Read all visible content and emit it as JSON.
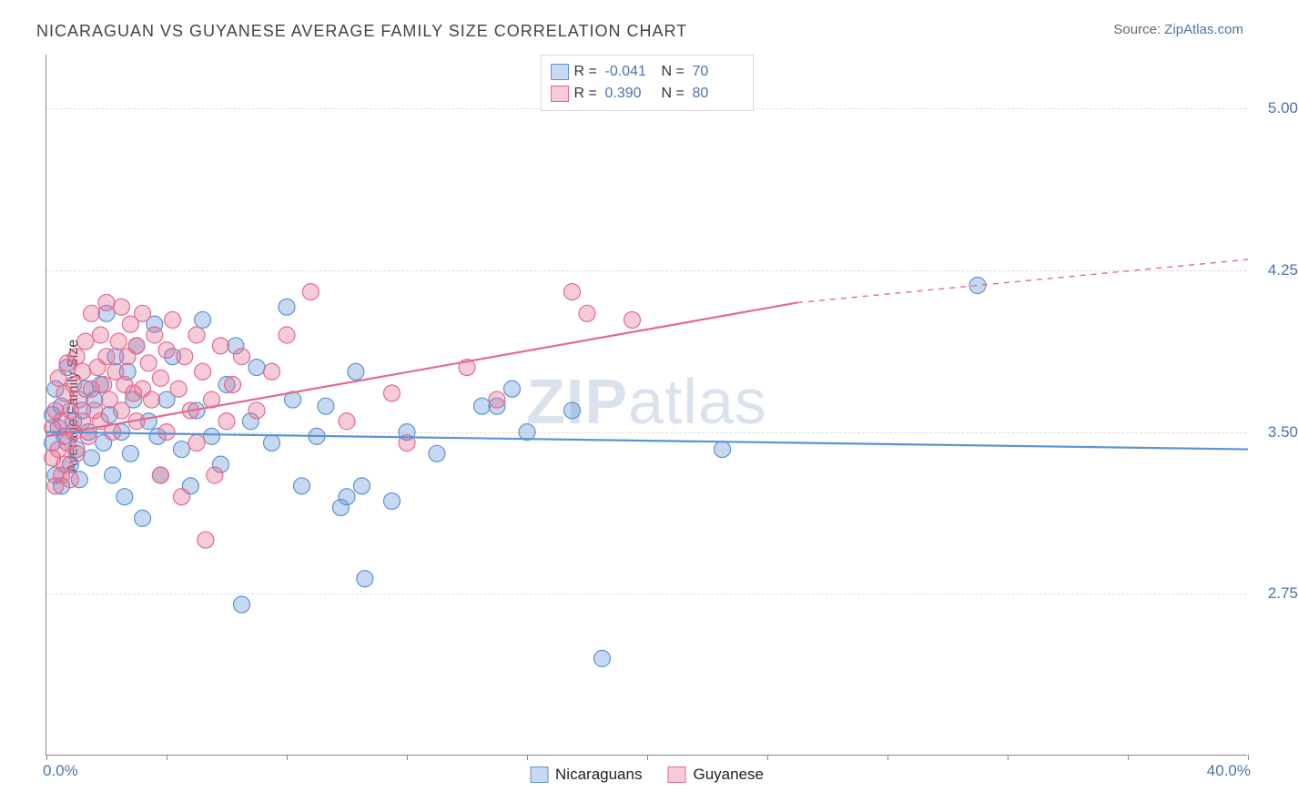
{
  "title": "NICARAGUAN VS GUYANESE AVERAGE FAMILY SIZE CORRELATION CHART",
  "source_label": "Source:",
  "source_name": "ZipAtlas.com",
  "ylabel": "Average Family Size",
  "watermark_bold": "ZIP",
  "watermark_rest": "atlas",
  "chart": {
    "type": "scatter-correlation",
    "xlim": [
      0,
      40
    ],
    "ylim": [
      2.0,
      5.25
    ],
    "x_unit": "%",
    "y_ticks": [
      2.75,
      3.5,
      4.25,
      5.0
    ],
    "y_tick_labels": [
      "2.75",
      "3.50",
      "4.25",
      "5.00"
    ],
    "x_tick_positions": [
      0,
      4,
      8,
      12,
      16,
      20,
      24,
      28,
      32,
      36,
      40
    ],
    "x_min_label": "0.0%",
    "x_max_label": "40.0%",
    "background_color": "#ffffff",
    "grid_color": "#dddddd",
    "axis_color": "#888888",
    "marker_radius": 9,
    "marker_fill_opacity": 0.35,
    "marker_stroke_width": 1.2,
    "line_width": 2.2,
    "series": [
      {
        "key": "nicaraguans",
        "label": "Nicaraguans",
        "color": "#5b93d6",
        "fill": "rgba(91,147,214,0.35)",
        "R": "-0.041",
        "N": "70",
        "trend_solid": {
          "x1": 0,
          "y1": 3.5,
          "x2": 40,
          "y2": 3.42
        },
        "trend_dashed": null,
        "points": [
          [
            0.2,
            3.45
          ],
          [
            0.2,
            3.58
          ],
          [
            0.3,
            3.3
          ],
          [
            0.3,
            3.7
          ],
          [
            0.4,
            3.52
          ],
          [
            0.5,
            3.25
          ],
          [
            0.5,
            3.62
          ],
          [
            0.6,
            3.48
          ],
          [
            0.7,
            3.8
          ],
          [
            0.8,
            3.35
          ],
          [
            0.9,
            3.55
          ],
          [
            1.0,
            3.42
          ],
          [
            1.1,
            3.28
          ],
          [
            1.2,
            3.6
          ],
          [
            1.3,
            3.7
          ],
          [
            1.4,
            3.5
          ],
          [
            1.5,
            3.38
          ],
          [
            1.6,
            3.65
          ],
          [
            1.8,
            3.72
          ],
          [
            1.9,
            3.45
          ],
          [
            2.0,
            4.05
          ],
          [
            2.1,
            3.58
          ],
          [
            2.2,
            3.3
          ],
          [
            2.3,
            3.85
          ],
          [
            2.5,
            3.5
          ],
          [
            2.6,
            3.2
          ],
          [
            2.7,
            3.78
          ],
          [
            2.8,
            3.4
          ],
          [
            2.9,
            3.65
          ],
          [
            3.0,
            3.9
          ],
          [
            3.2,
            3.1
          ],
          [
            3.4,
            3.55
          ],
          [
            3.6,
            4.0
          ],
          [
            3.7,
            3.48
          ],
          [
            3.8,
            3.3
          ],
          [
            4.0,
            3.65
          ],
          [
            4.2,
            3.85
          ],
          [
            4.5,
            3.42
          ],
          [
            4.8,
            3.25
          ],
          [
            5.0,
            3.6
          ],
          [
            5.2,
            4.02
          ],
          [
            5.5,
            3.48
          ],
          [
            5.8,
            3.35
          ],
          [
            6.0,
            3.72
          ],
          [
            6.3,
            3.9
          ],
          [
            6.5,
            2.7
          ],
          [
            6.8,
            3.55
          ],
          [
            7.0,
            3.8
          ],
          [
            7.5,
            3.45
          ],
          [
            8.0,
            4.08
          ],
          [
            8.2,
            3.65
          ],
          [
            8.5,
            3.25
          ],
          [
            9.0,
            3.48
          ],
          [
            9.3,
            3.62
          ],
          [
            9.8,
            3.15
          ],
          [
            10.0,
            3.2
          ],
          [
            10.3,
            3.78
          ],
          [
            10.5,
            3.25
          ],
          [
            10.6,
            2.82
          ],
          [
            11.5,
            3.18
          ],
          [
            12.0,
            3.5
          ],
          [
            13.0,
            3.4
          ],
          [
            14.5,
            3.62
          ],
          [
            15.0,
            3.62
          ],
          [
            15.5,
            3.7
          ],
          [
            16.0,
            3.5
          ],
          [
            17.5,
            3.6
          ],
          [
            18.5,
            2.45
          ],
          [
            22.5,
            3.42
          ],
          [
            31.0,
            4.18
          ]
        ]
      },
      {
        "key": "guyanese",
        "label": "Guyanese",
        "color": "#e46a8e",
        "fill": "rgba(228,106,142,0.35)",
        "R": "0.390",
        "N": "80",
        "trend_solid": {
          "x1": 0,
          "y1": 3.48,
          "x2": 25,
          "y2": 4.1
        },
        "trend_dashed": {
          "x1": 25,
          "y1": 4.1,
          "x2": 40,
          "y2": 4.3
        },
        "points": [
          [
            0.2,
            3.38
          ],
          [
            0.2,
            3.52
          ],
          [
            0.3,
            3.25
          ],
          [
            0.3,
            3.6
          ],
          [
            0.4,
            3.42
          ],
          [
            0.4,
            3.75
          ],
          [
            0.5,
            3.3
          ],
          [
            0.5,
            3.55
          ],
          [
            0.6,
            3.68
          ],
          [
            0.6,
            3.35
          ],
          [
            0.7,
            3.82
          ],
          [
            0.7,
            3.45
          ],
          [
            0.8,
            3.6
          ],
          [
            0.8,
            3.28
          ],
          [
            0.9,
            3.72
          ],
          [
            0.9,
            3.5
          ],
          [
            1.0,
            3.85
          ],
          [
            1.0,
            3.4
          ],
          [
            1.1,
            3.65
          ],
          [
            1.2,
            3.78
          ],
          [
            1.2,
            3.55
          ],
          [
            1.3,
            3.92
          ],
          [
            1.4,
            3.48
          ],
          [
            1.5,
            3.7
          ],
          [
            1.5,
            4.05
          ],
          [
            1.6,
            3.6
          ],
          [
            1.7,
            3.8
          ],
          [
            1.8,
            3.95
          ],
          [
            1.8,
            3.55
          ],
          [
            1.9,
            3.72
          ],
          [
            2.0,
            3.85
          ],
          [
            2.0,
            4.1
          ],
          [
            2.1,
            3.65
          ],
          [
            2.2,
            3.5
          ],
          [
            2.3,
            3.78
          ],
          [
            2.4,
            3.92
          ],
          [
            2.5,
            3.6
          ],
          [
            2.5,
            4.08
          ],
          [
            2.6,
            3.72
          ],
          [
            2.7,
            3.85
          ],
          [
            2.8,
            4.0
          ],
          [
            2.9,
            3.68
          ],
          [
            3.0,
            3.55
          ],
          [
            3.0,
            3.9
          ],
          [
            3.2,
            3.7
          ],
          [
            3.2,
            4.05
          ],
          [
            3.4,
            3.82
          ],
          [
            3.5,
            3.65
          ],
          [
            3.6,
            3.95
          ],
          [
            3.8,
            3.75
          ],
          [
            3.8,
            3.3
          ],
          [
            4.0,
            3.88
          ],
          [
            4.0,
            3.5
          ],
          [
            4.2,
            4.02
          ],
          [
            4.4,
            3.7
          ],
          [
            4.5,
            3.2
          ],
          [
            4.6,
            3.85
          ],
          [
            4.8,
            3.6
          ],
          [
            5.0,
            3.95
          ],
          [
            5.0,
            3.45
          ],
          [
            5.2,
            3.78
          ],
          [
            5.3,
            3.0
          ],
          [
            5.5,
            3.65
          ],
          [
            5.6,
            3.3
          ],
          [
            5.8,
            3.9
          ],
          [
            6.0,
            3.55
          ],
          [
            6.2,
            3.72
          ],
          [
            6.5,
            3.85
          ],
          [
            7.0,
            3.6
          ],
          [
            7.5,
            3.78
          ],
          [
            8.0,
            3.95
          ],
          [
            8.8,
            4.15
          ],
          [
            10.0,
            3.55
          ],
          [
            11.5,
            3.68
          ],
          [
            12.0,
            3.45
          ],
          [
            14.0,
            3.8
          ],
          [
            15.0,
            3.65
          ],
          [
            17.5,
            4.15
          ],
          [
            18.0,
            4.05
          ],
          [
            19.5,
            4.02
          ]
        ]
      }
    ]
  },
  "legend_top": {
    "r_label": "R =",
    "n_label": "N ="
  }
}
